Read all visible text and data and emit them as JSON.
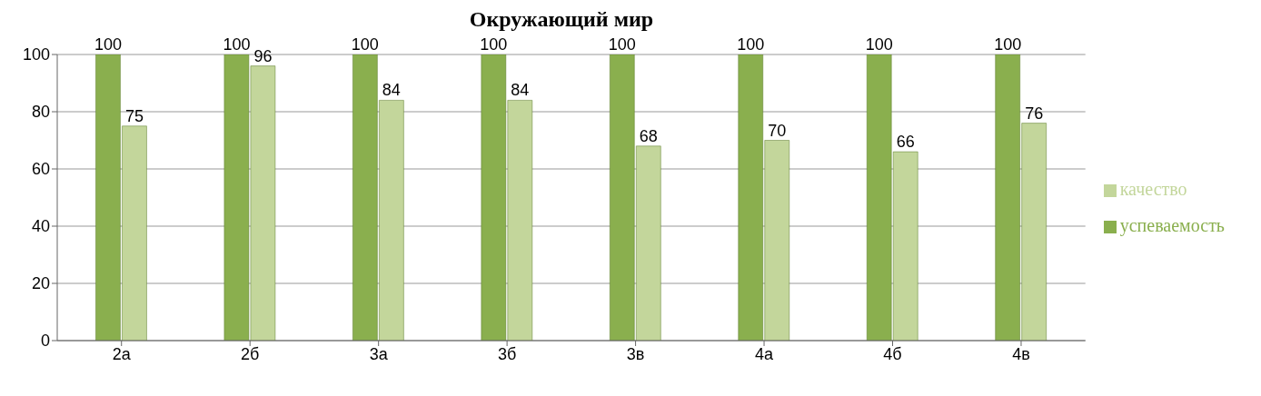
{
  "chart_data": {
    "type": "bar",
    "title": "Окружающий мир",
    "categories": [
      "2а",
      "2б",
      "3а",
      "3б",
      "3в",
      "4а",
      "4б",
      "4в"
    ],
    "series": [
      {
        "name": "успеваемость",
        "color": "#8aaf4e",
        "values": [
          100,
          100,
          100,
          100,
          100,
          100,
          100,
          100
        ]
      },
      {
        "name": "качество",
        "color": "#c3d69b",
        "values": [
          75,
          96,
          84,
          84,
          68,
          70,
          66,
          76
        ]
      }
    ],
    "ylim": [
      0,
      100
    ],
    "yticks": [
      0,
      20,
      40,
      60,
      80,
      100
    ],
    "grid": "y",
    "legend": "right",
    "data_labels": true
  }
}
